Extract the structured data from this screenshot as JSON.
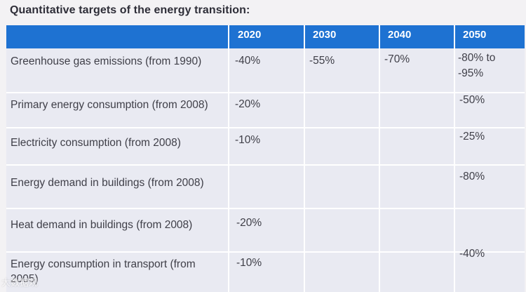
{
  "title": "Quantitative targets of the energy transition:",
  "columns": [
    "2020",
    "2030",
    "2040",
    "2050"
  ],
  "rows": [
    {
      "label": "Greenhouse gas emissions (from 1990)",
      "v2020": "-40%",
      "v2030": "-55%",
      "v2040": "-70%",
      "v2050": "-80% to -95%"
    },
    {
      "label": "Primary energy consumption (from 2008)",
      "v2020": "-20%",
      "v2030": "",
      "v2040": "",
      "v2050": "-50%"
    },
    {
      "label": "Electricity consumption (from 2008)",
      "v2020": "-10%",
      "v2030": "",
      "v2040": "",
      "v2050": "-25%"
    },
    {
      "label": "Energy demand in buildings (from 2008)",
      "v2020": "",
      "v2030": "",
      "v2040": "",
      "v2050": "-80%"
    },
    {
      "label": "Heat demand in buildings (from 2008)",
      "v2020": "-20%",
      "v2030": "",
      "v2040": "",
      "v2050": ""
    },
    {
      "label": "Energy consumption in transport (from 2005)",
      "v2020": "-10%",
      "v2030": "",
      "v2040": "",
      "v2050": "-40%"
    }
  ],
  "watermark": "大数据观"
}
